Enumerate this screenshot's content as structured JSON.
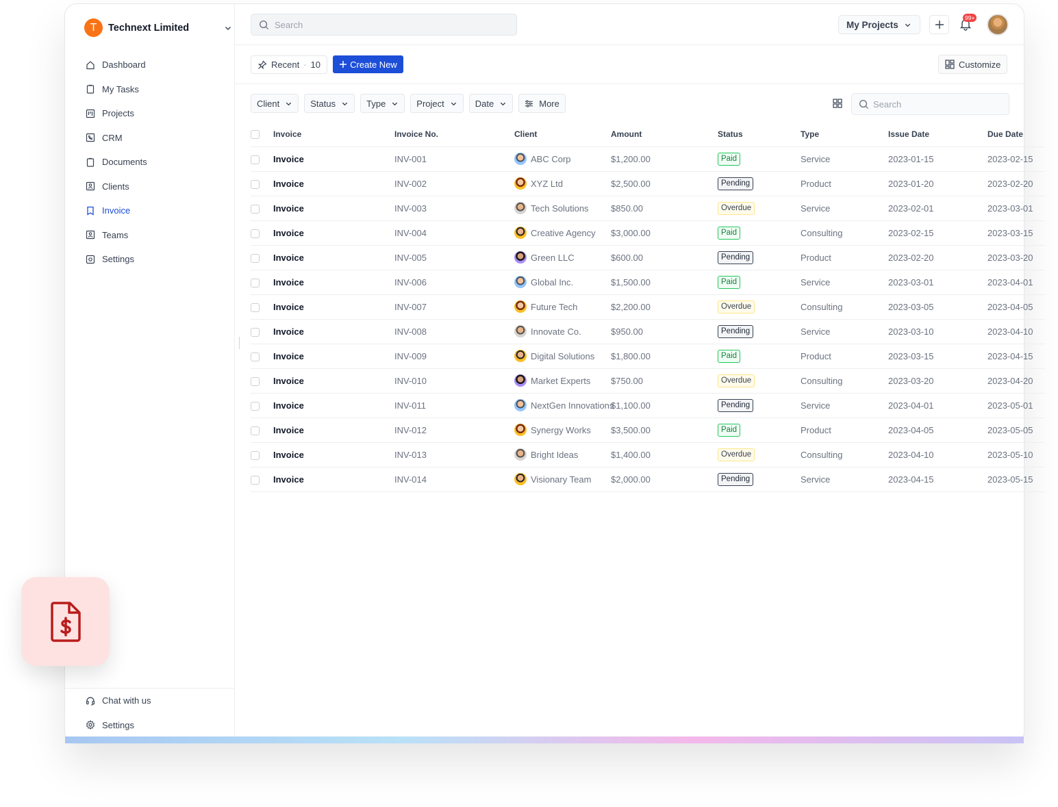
{
  "brand": {
    "initial": "T",
    "name": "Technext Limited"
  },
  "sidebar": {
    "items": [
      {
        "label": "Dashboard",
        "icon": "home-icon"
      },
      {
        "label": "My Tasks",
        "icon": "clipboard-icon"
      },
      {
        "label": "Projects",
        "icon": "kanban-icon"
      },
      {
        "label": "CRM",
        "icon": "phone-icon"
      },
      {
        "label": "Documents",
        "icon": "clipboard-icon"
      },
      {
        "label": "Clients",
        "icon": "contact-icon"
      },
      {
        "label": "Invoice",
        "icon": "bookmark-icon",
        "active": true
      },
      {
        "label": "Teams",
        "icon": "contact-icon"
      },
      {
        "label": "Settings",
        "icon": "gear-square-icon"
      }
    ],
    "bottom": [
      {
        "label": "Chat with us",
        "icon": "headset-icon"
      },
      {
        "label": "Settings",
        "icon": "gear-icon"
      }
    ]
  },
  "topbar": {
    "search_placeholder": "Search",
    "projects_label": "My Projects",
    "notification_badge": "99+"
  },
  "toolbar": {
    "recent_label": "Recent",
    "recent_sep": "·",
    "recent_count": "10",
    "create_label": "Create New",
    "customize_label": "Customize"
  },
  "filters": [
    "Client",
    "Status",
    "Type",
    "Project",
    "Date"
  ],
  "more_label": "More",
  "table_search_placeholder": "Search",
  "table": {
    "columns": [
      "Invoice",
      "Invoice No.",
      "Client",
      "Amount",
      "Status",
      "Type",
      "Issue Date",
      "Due Date"
    ],
    "rows": [
      {
        "name": "Invoice",
        "no": "INV-001",
        "client": "ABC Corp",
        "amount": "$1,200.00",
        "status": "Paid",
        "type": "Service",
        "issue": "2023-01-15",
        "due": "2023-02-15"
      },
      {
        "name": "Invoice",
        "no": "INV-002",
        "client": "XYZ Ltd",
        "amount": "$2,500.00",
        "status": "Pending",
        "type": "Product",
        "issue": "2023-01-20",
        "due": "2023-02-20"
      },
      {
        "name": "Invoice",
        "no": "INV-003",
        "client": "Tech Solutions",
        "amount": "$850.00",
        "status": "Overdue",
        "type": "Service",
        "issue": "2023-02-01",
        "due": "2023-03-01"
      },
      {
        "name": "Invoice",
        "no": "INV-004",
        "client": "Creative Agency",
        "amount": "$3,000.00",
        "status": "Paid",
        "type": "Consulting",
        "issue": "2023-02-15",
        "due": "2023-03-15"
      },
      {
        "name": "Invoice",
        "no": "INV-005",
        "client": "Green LLC",
        "amount": "$600.00",
        "status": "Pending",
        "type": "Product",
        "issue": "2023-02-20",
        "due": "2023-03-20"
      },
      {
        "name": "Invoice",
        "no": "INV-006",
        "client": "Global Inc.",
        "amount": "$1,500.00",
        "status": "Paid",
        "type": "Service",
        "issue": "2023-03-01",
        "due": "2023-04-01"
      },
      {
        "name": "Invoice",
        "no": "INV-007",
        "client": "Future Tech",
        "amount": "$2,200.00",
        "status": "Overdue",
        "type": "Consulting",
        "issue": "2023-03-05",
        "due": "2023-04-05"
      },
      {
        "name": "Invoice",
        "no": "INV-008",
        "client": "Innovate Co.",
        "amount": "$950.00",
        "status": "Pending",
        "type": "Service",
        "issue": "2023-03-10",
        "due": "2023-04-10"
      },
      {
        "name": "Invoice",
        "no": "INV-009",
        "client": "Digital Solutions",
        "amount": "$1,800.00",
        "status": "Paid",
        "type": "Product",
        "issue": "2023-03-15",
        "due": "2023-04-15"
      },
      {
        "name": "Invoice",
        "no": "INV-010",
        "client": "Market Experts",
        "amount": "$750.00",
        "status": "Overdue",
        "type": "Consulting",
        "issue": "2023-03-20",
        "due": "2023-04-20"
      },
      {
        "name": "Invoice",
        "no": "INV-011",
        "client": "NextGen Innovations",
        "amount": "$1,100.00",
        "status": "Pending",
        "type": "Service",
        "issue": "2023-04-01",
        "due": "2023-05-01"
      },
      {
        "name": "Invoice",
        "no": "INV-012",
        "client": "Synergy Works",
        "amount": "$3,500.00",
        "status": "Paid",
        "type": "Product",
        "issue": "2023-04-05",
        "due": "2023-05-05"
      },
      {
        "name": "Invoice",
        "no": "INV-013",
        "client": "Bright Ideas",
        "amount": "$1,400.00",
        "status": "Overdue",
        "type": "Consulting",
        "issue": "2023-04-10",
        "due": "2023-05-10"
      },
      {
        "name": "Invoice",
        "no": "INV-014",
        "client": "Visionary Team",
        "amount": "$2,000.00",
        "status": "Pending",
        "type": "Service",
        "issue": "2023-04-15",
        "due": "2023-05-15"
      }
    ]
  },
  "colors": {
    "accent": "#1d4ed8",
    "brand": "#f97316",
    "paid": "#22c55e",
    "badge": "#ef4444",
    "tile": "#fee2e2",
    "tile_icon": "#b91c1c"
  },
  "app_icon": "invoice-dollar-icon"
}
